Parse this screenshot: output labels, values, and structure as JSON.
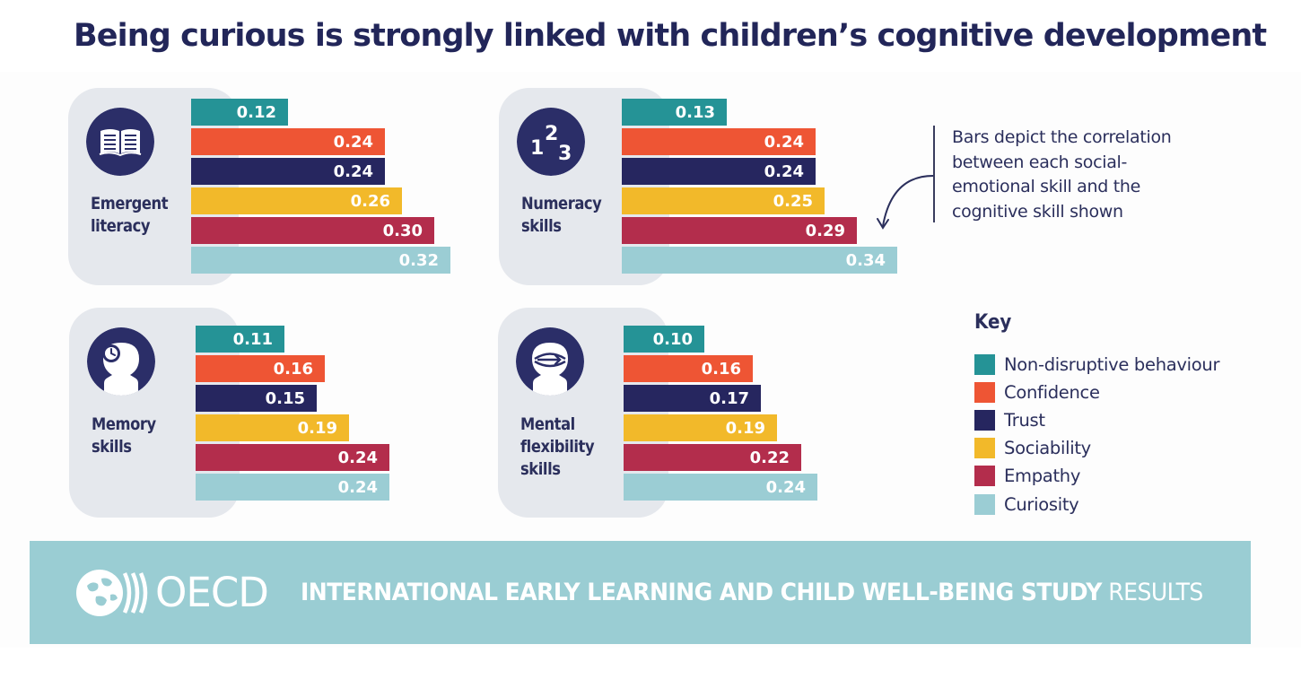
{
  "title": "Being curious is strongly linked with children’s cognitive development",
  "colors": {
    "title": "#222659",
    "text_dark": "#2b2f5c",
    "card": "#e5e8ed",
    "icon_circle": "#2b2e68",
    "footer": "#9acdd3",
    "footer_text": "#ffffff"
  },
  "annotation": "Bars depict the correlation between each social-emotional skill and the cognitive skill shown",
  "key": {
    "title": "Key"
  },
  "footer": {
    "logo_text": "OECD",
    "banner_bold": "INTERNATIONAL EARLY LEARNING AND CHILD WELL-BEING STUDY",
    "banner_light": "RESULTS"
  },
  "chart_data": {
    "type": "bar",
    "orientation": "horizontal",
    "series": [
      {
        "name": "Non-disruptive behaviour",
        "color": "#259396"
      },
      {
        "name": "Confidence",
        "color": "#ee5534"
      },
      {
        "name": "Trust",
        "color": "#26265f"
      },
      {
        "name": "Sociability",
        "color": "#f2b92a"
      },
      {
        "name": "Empathy",
        "color": "#b32d4c"
      },
      {
        "name": "Curiosity",
        "color": "#9bcdd4"
      }
    ],
    "panels": [
      {
        "skill": "Emergent literacy",
        "icon": "book-icon",
        "values": [
          "0.12",
          "0.24",
          "0.24",
          "0.26",
          "0.30",
          "0.32"
        ]
      },
      {
        "skill": "Numeracy skills",
        "icon": "numbers-123-icon",
        "values": [
          "0.13",
          "0.24",
          "0.24",
          "0.25",
          "0.29",
          "0.34"
        ]
      },
      {
        "skill": "Memory skills",
        "icon": "head-clock-icon",
        "values": [
          "0.11",
          "0.16",
          "0.15",
          "0.19",
          "0.24",
          "0.24"
        ]
      },
      {
        "skill": "Mental flexibility skills",
        "icon": "head-arrows-icon",
        "values": [
          "0.10",
          "0.16",
          "0.17",
          "0.19",
          "0.22",
          "0.24"
        ]
      }
    ]
  }
}
